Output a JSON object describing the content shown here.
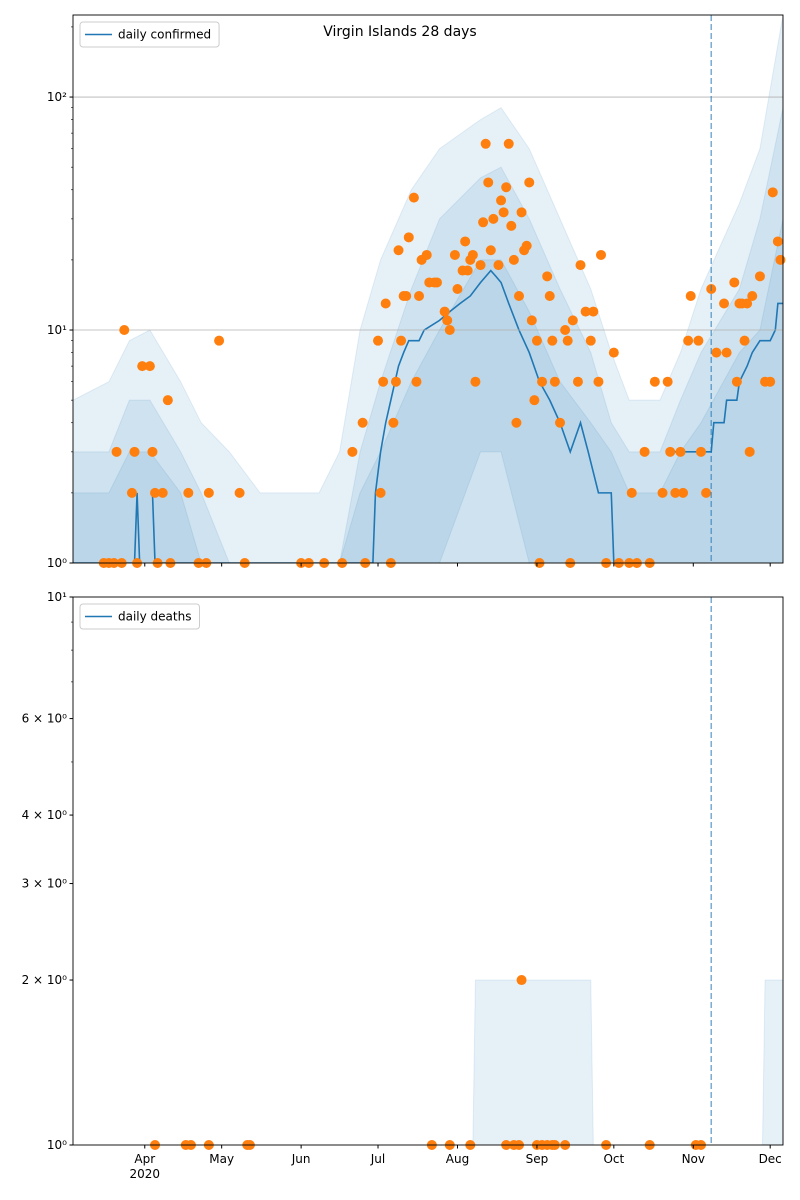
{
  "chart_data": [
    {
      "type": "line",
      "title": "Virgin Islands 28 days",
      "log_y": true,
      "grid": true,
      "legend": "upper left",
      "xlim": [
        64,
        341
      ],
      "ylim": [
        1,
        225
      ],
      "xticks": [
        92,
        122,
        153,
        183,
        214,
        245,
        275,
        306,
        336
      ],
      "yticks": [
        {
          "value": 1,
          "label": "10⁰"
        },
        {
          "value": 10,
          "label": "10¹"
        },
        {
          "value": 100,
          "label": "10²"
        }
      ],
      "yminor_ticks": [
        2,
        3,
        4,
        5,
        6,
        7,
        8,
        9,
        20,
        30,
        40,
        50,
        60,
        70,
        80,
        90,
        200
      ],
      "vline": 313,
      "series": [
        {
          "name": "daily confirmed",
          "color": "#1f77b4",
          "x": [
            64,
            88,
            89,
            90,
            91,
            94,
            95,
            96,
            181,
            182,
            184,
            186,
            188,
            191,
            193,
            195,
            199,
            201,
            207,
            211,
            215,
            219,
            223,
            227,
            229,
            231,
            234,
            238,
            242,
            246,
            250,
            254,
            258,
            262,
            265,
            269,
            274,
            275,
            276,
            295,
            296,
            297,
            298,
            303,
            313,
            314,
            318,
            319,
            323,
            324,
            327,
            329,
            332,
            336,
            338,
            339,
            341
          ],
          "values": [
            1,
            1,
            2,
            1,
            null,
            null,
            2,
            1,
            1,
            2,
            3,
            4,
            5,
            7,
            8,
            9,
            9,
            10,
            11,
            12,
            13,
            14,
            16,
            18,
            17,
            16,
            13,
            10,
            8,
            6,
            5,
            4,
            3,
            4,
            3,
            2,
            2,
            1,
            null,
            null,
            2,
            null,
            3,
            3,
            3,
            4,
            4,
            5,
            5,
            6,
            7,
            8,
            9,
            9,
            10,
            13,
            13
          ]
        }
      ],
      "points": {
        "color": "#ff7f0e",
        "x": [
          76,
          78,
          80,
          81,
          83,
          84,
          87,
          88,
          89,
          91,
          94,
          95,
          96,
          97,
          99,
          101,
          102,
          109,
          113,
          116,
          117,
          121,
          129,
          131,
          153,
          156,
          162,
          169,
          173,
          177,
          178,
          183,
          184,
          185,
          186,
          188,
          189,
          190,
          191,
          192,
          193,
          194,
          195,
          197,
          198,
          199,
          200,
          202,
          203,
          205,
          206,
          209,
          210,
          211,
          213,
          214,
          216,
          217,
          218,
          219,
          220,
          221,
          223,
          224,
          225,
          226,
          227,
          228,
          230,
          231,
          232,
          233,
          234,
          235,
          236,
          237,
          238,
          239,
          240,
          241,
          242,
          243,
          244,
          245,
          246,
          247,
          249,
          250,
          251,
          252,
          254,
          256,
          257,
          258,
          259,
          261,
          262,
          264,
          266,
          267,
          269,
          270,
          272,
          275,
          277,
          281,
          282,
          284,
          287,
          289,
          291,
          294,
          296,
          297,
          299,
          301,
          302,
          304,
          305,
          308,
          309,
          311,
          313,
          315,
          318,
          319,
          322,
          323,
          324,
          325,
          326,
          327,
          328,
          329,
          332,
          334,
          336,
          337,
          339,
          340
        ],
        "values": [
          1,
          1,
          1,
          3,
          1,
          10,
          2,
          3,
          1,
          7,
          7,
          3,
          2,
          1,
          2,
          5,
          1,
          2,
          1,
          1,
          2,
          9,
          2,
          1,
          1,
          1,
          1,
          1,
          3,
          4,
          1,
          9,
          2,
          6,
          13,
          1,
          4,
          6,
          22,
          9,
          14,
          14,
          25,
          37,
          6,
          14,
          20,
          21,
          16,
          16,
          16,
          12,
          11,
          10,
          21,
          15,
          18,
          24,
          18,
          20,
          21,
          6,
          19,
          29,
          63,
          43,
          22,
          30,
          19,
          36,
          32,
          41,
          63,
          28,
          20,
          4,
          14,
          32,
          22,
          23,
          43,
          11,
          5,
          9,
          1,
          6,
          17,
          14,
          9,
          6,
          4,
          10,
          9,
          1,
          11,
          6,
          19,
          12,
          9,
          12,
          6,
          21,
          1,
          8,
          1,
          1,
          2,
          1,
          3,
          1,
          6,
          2,
          6,
          3,
          2,
          3,
          2,
          9,
          14,
          9,
          3,
          2,
          15,
          8,
          13,
          8,
          16,
          6,
          13,
          13,
          9,
          13,
          3,
          14,
          17,
          6,
          6,
          39,
          24,
          20
        ]
      },
      "bands": [
        {
          "color": "#1f77b4",
          "alpha": 0.11,
          "x": [
            64,
            78,
            86,
            94,
            106,
            114,
            125,
            137,
            153,
            160,
            168,
            176,
            184,
            196,
            207,
            223,
            231,
            242,
            254,
            266,
            274,
            281,
            293,
            301,
            309,
            324,
            332,
            341
          ],
          "upper": [
            5,
            6,
            9,
            10,
            6,
            4,
            3,
            2,
            2,
            2,
            3,
            10,
            20,
            40,
            60,
            80,
            90,
            60,
            30,
            15,
            8,
            5,
            5,
            8,
            15,
            35,
            60,
            225
          ],
          "lower": [
            1,
            1,
            1,
            1,
            1,
            1,
            1,
            1,
            1,
            1,
            1,
            1,
            1,
            1,
            1,
            3,
            3,
            1,
            1,
            1,
            1,
            1,
            1,
            1,
            1,
            1,
            1,
            1
          ]
        },
        {
          "color": "#1f77b4",
          "alpha": 0.11,
          "x": [
            64,
            78,
            86,
            94,
            106,
            114,
            125,
            137,
            153,
            160,
            168,
            176,
            184,
            196,
            207,
            223,
            231,
            242,
            254,
            266,
            274,
            281,
            293,
            301,
            309,
            324,
            332,
            341
          ],
          "upper": [
            3,
            3,
            5,
            5,
            3,
            2,
            1,
            1,
            1,
            1,
            1,
            3,
            6,
            15,
            30,
            45,
            50,
            30,
            15,
            8,
            4,
            3,
            3,
            5,
            8,
            15,
            30,
            90
          ],
          "lower": [
            1,
            1,
            1,
            1,
            1,
            1,
            1,
            1,
            1,
            1,
            1,
            1,
            1,
            1,
            1,
            1,
            1,
            1,
            1,
            1,
            1,
            1,
            1,
            1,
            1,
            1,
            1,
            1
          ]
        },
        {
          "color": "#1f77b4",
          "alpha": 0.11,
          "x": [
            64,
            78,
            86,
            94,
            106,
            114,
            125,
            137,
            153,
            160,
            168,
            176,
            184,
            196,
            207,
            223,
            231,
            242,
            254,
            266,
            274,
            281,
            293,
            301,
            309,
            324,
            332,
            341
          ],
          "upper": [
            2,
            2,
            3,
            3,
            2,
            1,
            1,
            1,
            1,
            1,
            1,
            2,
            3,
            6,
            10,
            20,
            20,
            12,
            6,
            4,
            3,
            2,
            2,
            3,
            4,
            8,
            10,
            30
          ],
          "lower": [
            1,
            1,
            1,
            1,
            1,
            1,
            1,
            1,
            1,
            1,
            1,
            1,
            1,
            1,
            1,
            1,
            1,
            1,
            1,
            1,
            1,
            1,
            1,
            1,
            1,
            1,
            1,
            1
          ]
        }
      ]
    },
    {
      "type": "line",
      "log_y": true,
      "grid": false,
      "legend": "upper left",
      "xlim": [
        64,
        341
      ],
      "ylim": [
        1,
        10
      ],
      "xticks": [
        {
          "value": 92,
          "label": "Apr"
        },
        {
          "value": 122,
          "label": "May"
        },
        {
          "value": 153,
          "label": "Jun"
        },
        {
          "value": 183,
          "label": "Jul"
        },
        {
          "value": 214,
          "label": "Aug"
        },
        {
          "value": 245,
          "label": "Sep"
        },
        {
          "value": 275,
          "label": "Oct"
        },
        {
          "value": 306,
          "label": "Nov"
        },
        {
          "value": 336,
          "label": "Dec"
        }
      ],
      "x_year_label": "2020",
      "yticks": [
        {
          "value": 1,
          "label": "10⁰"
        },
        {
          "value": 2,
          "label": "2 × 10⁰"
        },
        {
          "value": 3,
          "label": "3 × 10⁰"
        },
        {
          "value": 4,
          "label": "4 × 10⁰"
        },
        {
          "value": 6,
          "label": "6 × 10⁰"
        },
        {
          "value": 10,
          "label": "10¹"
        }
      ],
      "yminor_ticks": [
        5,
        7,
        8,
        9
      ],
      "vline": 313,
      "series": [
        {
          "name": "daily deaths",
          "color": "#1f77b4"
        }
      ],
      "points": {
        "color": "#ff7f0e",
        "x": [
          96,
          108,
          110,
          117,
          132,
          133,
          204,
          211,
          219,
          233,
          236,
          238,
          239,
          245,
          247,
          249,
          251,
          252,
          256,
          272,
          289,
          307,
          309
        ],
        "values": [
          1,
          1,
          1,
          1,
          1,
          1,
          1,
          1,
          1,
          1,
          1,
          1,
          2,
          1,
          1,
          1,
          1,
          1,
          1,
          1,
          1,
          1,
          1
        ]
      },
      "bands": [
        {
          "color": "#1f77b4",
          "alpha": 0.11,
          "x": [
            220,
            221,
            266,
            267,
            333,
            334,
            341
          ],
          "upper": [
            1,
            2,
            2,
            1,
            1,
            2,
            2
          ],
          "lower": [
            1,
            1,
            1,
            1,
            1,
            1,
            1
          ]
        }
      ]
    }
  ]
}
